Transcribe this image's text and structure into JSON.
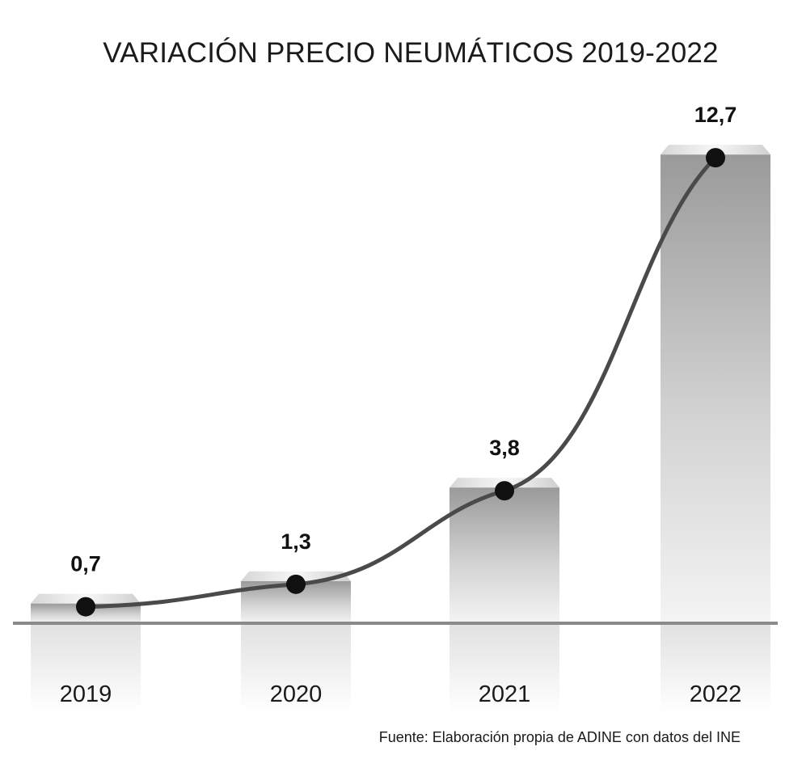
{
  "chart_data": {
    "type": "bar",
    "title": "VARIACIÓN PRECIO NEUMÁTICOS 2019-2022",
    "categories": [
      "2019",
      "2020",
      "2021",
      "2022"
    ],
    "values": [
      0.7,
      1.3,
      3.8,
      12.7
    ],
    "value_labels": [
      "0,7",
      "1,3",
      "3,8",
      "12,7"
    ],
    "overlay": "line-with-markers",
    "xlabel": "",
    "ylabel": "",
    "ylim": [
      0,
      13.2
    ],
    "grid": false,
    "legend": "none",
    "colors": {
      "bar_light": "#f2f2f2",
      "bar_dark": "#9a9a9a",
      "line": "#4a4a4a",
      "marker": "#111111",
      "baseline": "#8a8a8a"
    }
  },
  "source": "Fuente: Elaboración propia de ADINE con datos del INE"
}
